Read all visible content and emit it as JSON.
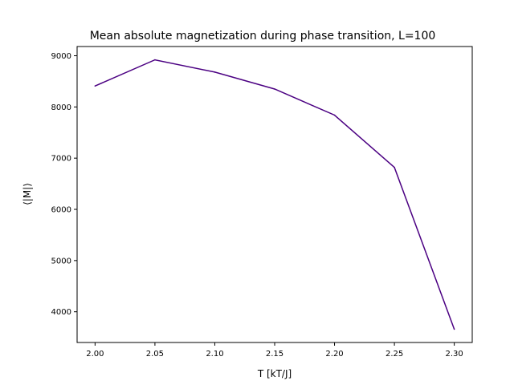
{
  "chart_data": {
    "type": "line",
    "title": "Mean absolute magnetization during phase transition, L=100",
    "xlabel": "T [kT/J]",
    "ylabel": "⟨|M|⟩",
    "x": [
      2.0,
      2.05,
      2.1,
      2.15,
      2.2,
      2.25,
      2.3
    ],
    "series": [
      {
        "values": [
          8410,
          8920,
          8680,
          8350,
          7840,
          6820,
          3660
        ],
        "color": "#4b0082"
      }
    ],
    "xlim": [
      1.985,
      2.315
    ],
    "ylim": [
      3400,
      9180
    ],
    "xticks": [
      2.0,
      2.05,
      2.1,
      2.15,
      2.2,
      2.25,
      2.3
    ],
    "xtick_labels": [
      "2.00",
      "2.05",
      "2.10",
      "2.15",
      "2.20",
      "2.25",
      "2.30"
    ],
    "yticks": [
      4000,
      5000,
      6000,
      7000,
      8000,
      9000
    ],
    "ytick_labels": [
      "4000",
      "5000",
      "6000",
      "7000",
      "8000",
      "9000"
    ],
    "grid": false,
    "legend": "none"
  }
}
